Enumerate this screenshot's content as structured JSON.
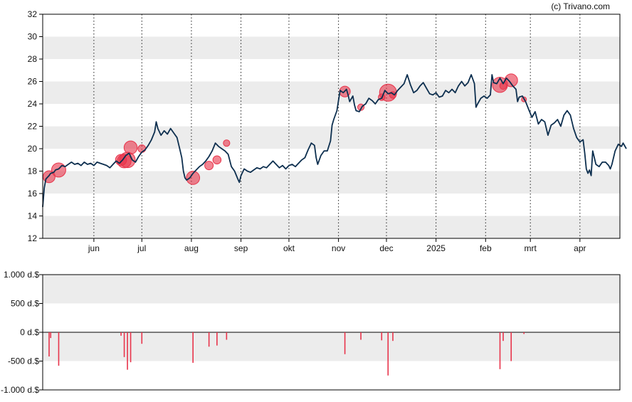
{
  "credit": "(c) Trivano.com",
  "colors": {
    "price_line": "#0d2f4f",
    "bubble": "#e8334a",
    "volume_bar": "#e8334a",
    "band": "#ececec",
    "axis": "#000000"
  },
  "chart_data": [
    {
      "type": "line",
      "yticks": [
        "12",
        "14",
        "16",
        "18",
        "20",
        "22",
        "24",
        "26",
        "28",
        "30",
        "32"
      ],
      "ylim": [
        12,
        32
      ],
      "xticks": [
        {
          "label": "jun",
          "day": 32
        },
        {
          "label": "jul",
          "day": 62
        },
        {
          "label": "aug",
          "day": 93
        },
        {
          "label": "sep",
          "day": 124
        },
        {
          "label": "okt",
          "day": 154
        },
        {
          "label": "nov",
          "day": 185
        },
        {
          "label": "dec",
          "day": 215
        },
        {
          "label": "2025",
          "day": 246
        },
        {
          "label": "feb",
          "day": 277
        },
        {
          "label": "mrt",
          "day": 305
        },
        {
          "label": "apr",
          "day": 336
        }
      ],
      "xlim": [
        0,
        361
      ],
      "series": [
        {
          "points": [
            [
              0,
              14.8
            ],
            [
              1,
              16.5
            ],
            [
              2,
              17.3
            ],
            [
              4,
              17.6
            ],
            [
              5,
              17.8
            ],
            [
              7,
              17.9
            ],
            [
              8,
              18.1
            ],
            [
              10,
              18.2
            ],
            [
              12,
              18.5
            ],
            [
              14,
              18.4
            ],
            [
              16,
              18.6
            ],
            [
              18,
              18.8
            ],
            [
              20,
              18.6
            ],
            [
              22,
              18.7
            ],
            [
              24,
              18.5
            ],
            [
              26,
              18.8
            ],
            [
              28,
              18.6
            ],
            [
              30,
              18.7
            ],
            [
              32,
              18.5
            ],
            [
              34,
              18.8
            ],
            [
              36,
              18.7
            ],
            [
              38,
              18.6
            ],
            [
              40,
              18.5
            ],
            [
              42,
              18.3
            ],
            [
              44,
              18.6
            ],
            [
              46,
              18.9
            ],
            [
              48,
              18.7
            ],
            [
              50,
              19.0
            ],
            [
              52,
              19.4
            ],
            [
              54,
              19.6
            ],
            [
              56,
              19.0
            ],
            [
              58,
              18.8
            ],
            [
              60,
              19.3
            ],
            [
              62,
              19.7
            ],
            [
              64,
              19.9
            ],
            [
              66,
              20.3
            ],
            [
              68,
              20.8
            ],
            [
              70,
              21.5
            ],
            [
              71,
              22.4
            ],
            [
              72,
              21.8
            ],
            [
              74,
              21.2
            ],
            [
              76,
              21.6
            ],
            [
              78,
              21.3
            ],
            [
              80,
              21.8
            ],
            [
              82,
              21.4
            ],
            [
              84,
              21.0
            ],
            [
              86,
              19.8
            ],
            [
              87,
              19.2
            ],
            [
              88,
              18.0
            ],
            [
              89,
              17.4
            ],
            [
              90,
              17.2
            ],
            [
              92,
              17.4
            ],
            [
              94,
              17.8
            ],
            [
              96,
              18.1
            ],
            [
              98,
              18.4
            ],
            [
              100,
              18.6
            ],
            [
              102,
              18.9
            ],
            [
              104,
              19.3
            ],
            [
              106,
              19.8
            ],
            [
              108,
              20.5
            ],
            [
              110,
              20.2
            ],
            [
              112,
              20.0
            ],
            [
              114,
              19.8
            ],
            [
              116,
              19.5
            ],
            [
              118,
              18.4
            ],
            [
              120,
              18.0
            ],
            [
              122,
              17.3
            ],
            [
              123,
              17.0
            ],
            [
              124,
              17.6
            ],
            [
              126,
              18.2
            ],
            [
              128,
              18.0
            ],
            [
              130,
              17.9
            ],
            [
              132,
              18.1
            ],
            [
              134,
              18.3
            ],
            [
              136,
              18.2
            ],
            [
              138,
              18.4
            ],
            [
              140,
              18.3
            ],
            [
              142,
              18.6
            ],
            [
              144,
              18.9
            ],
            [
              146,
              18.6
            ],
            [
              148,
              18.3
            ],
            [
              150,
              18.5
            ],
            [
              152,
              18.2
            ],
            [
              154,
              18.5
            ],
            [
              156,
              18.6
            ],
            [
              158,
              18.4
            ],
            [
              160,
              18.7
            ],
            [
              162,
              19.0
            ],
            [
              164,
              19.2
            ],
            [
              166,
              19.9
            ],
            [
              168,
              20.5
            ],
            [
              170,
              20.3
            ],
            [
              171,
              19.2
            ],
            [
              172,
              18.6
            ],
            [
              174,
              19.4
            ],
            [
              176,
              19.8
            ],
            [
              178,
              19.8
            ],
            [
              180,
              20.7
            ],
            [
              181,
              22.1
            ],
            [
              182,
              22.6
            ],
            [
              184,
              23.4
            ],
            [
              185,
              24.3
            ],
            [
              186,
              25.2
            ],
            [
              188,
              25.0
            ],
            [
              190,
              25.3
            ],
            [
              191,
              24.8
            ],
            [
              192,
              24.2
            ],
            [
              194,
              24.7
            ],
            [
              195,
              23.9
            ],
            [
              196,
              23.4
            ],
            [
              198,
              23.3
            ],
            [
              200,
              23.8
            ],
            [
              202,
              24.0
            ],
            [
              204,
              24.5
            ],
            [
              206,
              24.3
            ],
            [
              208,
              24.0
            ],
            [
              210,
              24.4
            ],
            [
              212,
              24.5
            ],
            [
              214,
              25.2
            ],
            [
              216,
              24.9
            ],
            [
              218,
              25.0
            ],
            [
              220,
              24.8
            ],
            [
              222,
              25.2
            ],
            [
              224,
              25.5
            ],
            [
              226,
              25.8
            ],
            [
              228,
              26.6
            ],
            [
              230,
              25.7
            ],
            [
              232,
              25.0
            ],
            [
              234,
              25.2
            ],
            [
              236,
              25.6
            ],
            [
              238,
              25.9
            ],
            [
              240,
              25.4
            ],
            [
              242,
              24.9
            ],
            [
              244,
              24.8
            ],
            [
              246,
              25.0
            ],
            [
              248,
              24.6
            ],
            [
              250,
              24.7
            ],
            [
              252,
              25.2
            ],
            [
              254,
              25.0
            ],
            [
              256,
              25.3
            ],
            [
              258,
              25.0
            ],
            [
              260,
              25.6
            ],
            [
              262,
              26.0
            ],
            [
              264,
              25.6
            ],
            [
              266,
              25.9
            ],
            [
              268,
              26.6
            ],
            [
              270,
              25.8
            ],
            [
              271,
              23.7
            ],
            [
              272,
              24.0
            ],
            [
              274,
              24.5
            ],
            [
              276,
              24.7
            ],
            [
              278,
              24.5
            ],
            [
              280,
              24.8
            ],
            [
              281,
              26.6
            ],
            [
              282,
              25.9
            ],
            [
              284,
              25.8
            ],
            [
              286,
              26.3
            ],
            [
              288,
              25.8
            ],
            [
              290,
              26.3
            ],
            [
              292,
              26.0
            ],
            [
              294,
              25.6
            ],
            [
              296,
              25.3
            ],
            [
              297,
              24.2
            ],
            [
              298,
              24.6
            ],
            [
              300,
              24.7
            ],
            [
              302,
              24.2
            ],
            [
              304,
              23.5
            ],
            [
              306,
              22.8
            ],
            [
              308,
              23.3
            ],
            [
              310,
              22.2
            ],
            [
              312,
              22.6
            ],
            [
              314,
              22.4
            ],
            [
              316,
              21.2
            ],
            [
              318,
              22.1
            ],
            [
              320,
              22.3
            ],
            [
              322,
              22.6
            ],
            [
              324,
              22.0
            ],
            [
              326,
              23.0
            ],
            [
              328,
              23.4
            ],
            [
              330,
              23.0
            ],
            [
              332,
              21.8
            ],
            [
              334,
              21.0
            ],
            [
              336,
              20.6
            ],
            [
              338,
              20.8
            ],
            [
              339,
              19.6
            ],
            [
              340,
              18.2
            ],
            [
              341,
              17.8
            ],
            [
              342,
              18.1
            ],
            [
              343,
              17.6
            ],
            [
              344,
              19.8
            ],
            [
              346,
              18.6
            ],
            [
              348,
              18.4
            ],
            [
              350,
              18.8
            ],
            [
              352,
              18.8
            ],
            [
              354,
              18.5
            ],
            [
              355,
              18.2
            ],
            [
              356,
              18.6
            ],
            [
              358,
              19.8
            ],
            [
              360,
              20.4
            ],
            [
              362,
              20.2
            ],
            [
              363,
              20.5
            ],
            [
              365,
              20.0
            ]
          ]
        }
      ],
      "bubbles": [
        {
          "x": 4,
          "y": 17.5,
          "size": 0.45
        },
        {
          "x": 10,
          "y": 18.1,
          "size": 0.58
        },
        {
          "x": 49,
          "y": 19.0,
          "size": 0.4
        },
        {
          "x": 51,
          "y": 18.9,
          "size": 0.55
        },
        {
          "x": 53,
          "y": 19.0,
          "size": 0.66
        },
        {
          "x": 55,
          "y": 20.1,
          "size": 0.52
        },
        {
          "x": 62,
          "y": 20.0,
          "size": 0.2
        },
        {
          "x": 94,
          "y": 17.4,
          "size": 0.53
        },
        {
          "x": 104,
          "y": 18.5,
          "size": 0.25
        },
        {
          "x": 109,
          "y": 19.0,
          "size": 0.23
        },
        {
          "x": 115,
          "y": 20.5,
          "size": 0.13
        },
        {
          "x": 189,
          "y": 25.1,
          "size": 0.38
        },
        {
          "x": 199,
          "y": 23.7,
          "size": 0.13
        },
        {
          "x": 212,
          "y": 24.6,
          "size": 0.14
        },
        {
          "x": 216,
          "y": 25.0,
          "size": 0.75
        },
        {
          "x": 219,
          "y": 24.8,
          "size": 0.14
        },
        {
          "x": 286,
          "y": 25.7,
          "size": 0.64
        },
        {
          "x": 288,
          "y": 25.6,
          "size": 0.15
        },
        {
          "x": 293,
          "y": 26.1,
          "size": 0.5
        },
        {
          "x": 301,
          "y": 24.4,
          "size": 0.04
        }
      ]
    },
    {
      "type": "bar",
      "yticks": [
        "1.000 d.$",
        "500 d.$",
        "0 d.$",
        "-500 d.$",
        "-1.000 d.$"
      ],
      "ylim": [
        -1000,
        1000
      ],
      "values": [
        {
          "x": 4,
          "value": -420
        },
        {
          "x": 5,
          "value": -100
        },
        {
          "x": 10,
          "value": -580
        },
        {
          "x": 49,
          "value": -60
        },
        {
          "x": 51,
          "value": -430
        },
        {
          "x": 53,
          "value": -650
        },
        {
          "x": 55,
          "value": -520
        },
        {
          "x": 62,
          "value": -200
        },
        {
          "x": 94,
          "value": -530
        },
        {
          "x": 104,
          "value": -250
        },
        {
          "x": 109,
          "value": -230
        },
        {
          "x": 115,
          "value": -130
        },
        {
          "x": 189,
          "value": -380
        },
        {
          "x": 199,
          "value": -130
        },
        {
          "x": 212,
          "value": -140
        },
        {
          "x": 216,
          "value": -750
        },
        {
          "x": 219,
          "value": -150
        },
        {
          "x": 286,
          "value": -640
        },
        {
          "x": 288,
          "value": -150
        },
        {
          "x": 293,
          "value": -500
        },
        {
          "x": 301,
          "value": -30
        }
      ]
    }
  ]
}
